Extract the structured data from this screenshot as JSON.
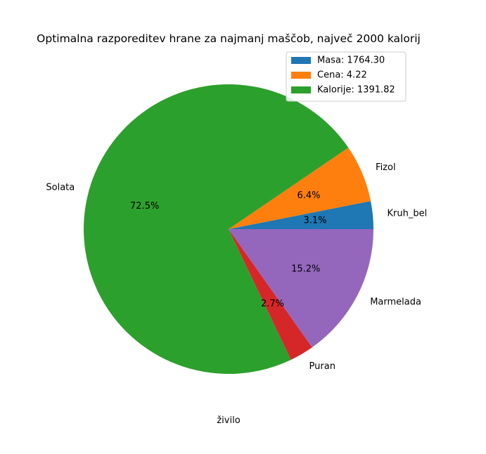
{
  "chart_data": {
    "type": "pie",
    "title": "Optimalna razporeditev hrane za najmanj maščob, največ 2000 kalorij",
    "xlabel": "živilo",
    "slices": [
      {
        "label": "Kruh_bel",
        "pct_label": "3.1%",
        "value": 3.1,
        "color": "#1f77b4"
      },
      {
        "label": "Fizol",
        "pct_label": "6.4%",
        "value": 6.4,
        "color": "#ff7f0e"
      },
      {
        "label": "Solata",
        "pct_label": "72.5%",
        "value": 72.5,
        "color": "#2ca02c"
      },
      {
        "label": "Puran",
        "pct_label": "2.7%",
        "value": 2.7,
        "color": "#d62728"
      },
      {
        "label": "Marmelada",
        "pct_label": "15.2%",
        "value": 15.2,
        "color": "#9467bd"
      }
    ],
    "legend": {
      "placement": "upper-right",
      "entries": [
        {
          "label": "Masa: 1764.30",
          "color": "#1f77b4"
        },
        {
          "label": "Cena: 4.22",
          "color": "#ff7f0e"
        },
        {
          "label": "Kalorije: 1391.82",
          "color": "#2ca02c"
        }
      ]
    }
  }
}
